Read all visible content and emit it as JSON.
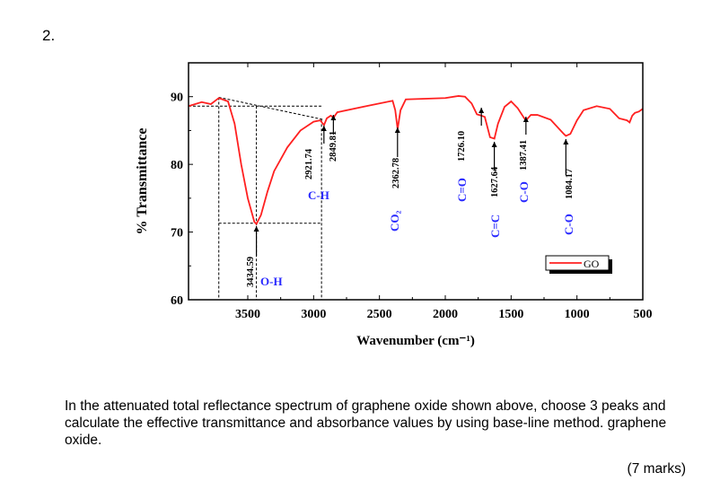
{
  "question_number": "2.",
  "question_text": "In the attenuated total reflectance spectrum of graphene oxide shown above, choose 3 peaks and calculate the effective transmittance and absorbance values by using base-line method. graphene oxide.",
  "marks": "(7 marks)",
  "chart_data": {
    "type": "line",
    "title": "",
    "xlabel": "Wavenumber (cm⁻¹)",
    "ylabel": "% Transmittance",
    "xlim": [
      3950,
      500
    ],
    "ylim": [
      60,
      95
    ],
    "x_reversed": true,
    "xticks": [
      3500,
      3000,
      2500,
      2000,
      1500,
      1000,
      500
    ],
    "yticks": [
      60,
      70,
      80,
      90
    ],
    "grid": false,
    "legend": {
      "position": "bottom-right",
      "entries": [
        "GO"
      ]
    },
    "series": [
      {
        "name": "GO",
        "color": "#ff2020",
        "x": [
          3950,
          3850,
          3780,
          3720,
          3650,
          3600,
          3550,
          3500,
          3450,
          3434,
          3400,
          3350,
          3300,
          3200,
          3100,
          3000,
          2950,
          2921,
          2900,
          2870,
          2849,
          2820,
          2600,
          2400,
          2380,
          2362,
          2340,
          2300,
          2000,
          1900,
          1850,
          1800,
          1760,
          1726,
          1700,
          1660,
          1627,
          1600,
          1550,
          1500,
          1450,
          1400,
          1387,
          1350,
          1300,
          1200,
          1100,
          1084,
          1050,
          1000,
          950,
          850,
          750,
          680,
          620,
          600,
          580,
          560,
          530,
          500
        ],
        "y": [
          88.6,
          89.2,
          88.9,
          89.8,
          89.3,
          86,
          80,
          75,
          71.5,
          71.2,
          72.5,
          76,
          79,
          82.5,
          85,
          86.3,
          86.5,
          85.8,
          86.8,
          87.2,
          86.9,
          87.7,
          88.6,
          89.4,
          88,
          85.2,
          88,
          89.6,
          89.8,
          90.1,
          90,
          89,
          87.4,
          87.2,
          87,
          84,
          83.8,
          86,
          88.5,
          89.3,
          88.3,
          86.8,
          86.5,
          87.3,
          87.3,
          86.6,
          84.5,
          84.2,
          84.5,
          86.5,
          88,
          88.6,
          88.2,
          86.8,
          86.5,
          86.2,
          87.2,
          87.6,
          87.8,
          88.2
        ]
      }
    ],
    "annotations": [
      {
        "label": "3434.59",
        "group": "O-H",
        "x": 3434.59
      },
      {
        "label": "2921.74",
        "group": "C-H",
        "x": 2921.74
      },
      {
        "label": "2849.81",
        "group": "",
        "x": 2849.81
      },
      {
        "label": "2362.78",
        "group": "CO2",
        "x": 2362.78
      },
      {
        "label": "1726.10",
        "group": "C=O",
        "x": 1726.1
      },
      {
        "label": "1627.64",
        "group": "C=C",
        "x": 1627.64
      },
      {
        "label": "1387.41",
        "group": "C-O",
        "x": 1387.41
      },
      {
        "label": "1084.17",
        "group": "C-O",
        "x": 1084.17
      }
    ],
    "baselines": [
      {
        "from": [
          3720,
          89.9
        ],
        "to": [
          2921,
          86.6
        ]
      },
      {
        "from": [
          3950,
          88.6
        ],
        "to": [
          2940,
          88.6
        ]
      },
      {
        "from": [
          3720,
          71.3
        ],
        "to": [
          2940,
          71.3
        ]
      }
    ]
  }
}
